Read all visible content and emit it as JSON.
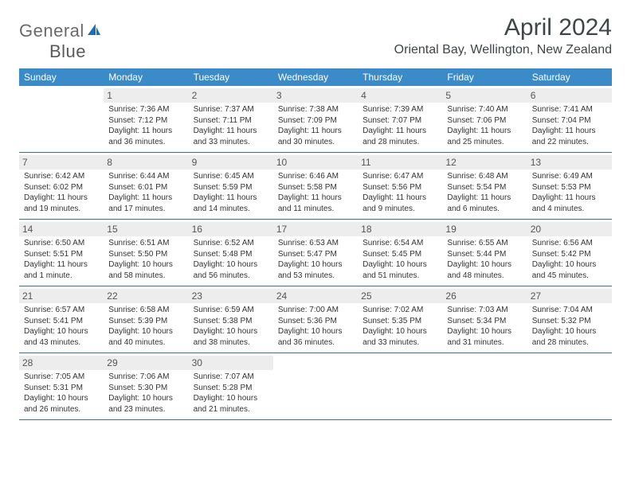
{
  "brand": {
    "name_part1": "General",
    "name_part2": "Blue"
  },
  "title": "April 2024",
  "location": "Oriental Bay, Wellington, New Zealand",
  "colors": {
    "header_bg": "#3b8bc9",
    "rule": "#3b6f97",
    "daynum_bg": "#ededed",
    "text": "#333333",
    "title_text": "#404548"
  },
  "dow": [
    "Sunday",
    "Monday",
    "Tuesday",
    "Wednesday",
    "Thursday",
    "Friday",
    "Saturday"
  ],
  "weeks": [
    [
      {
        "n": "",
        "sunrise": "",
        "sunset": "",
        "daylight": ""
      },
      {
        "n": "1",
        "sunrise": "Sunrise: 7:36 AM",
        "sunset": "Sunset: 7:12 PM",
        "daylight": "Daylight: 11 hours and 36 minutes."
      },
      {
        "n": "2",
        "sunrise": "Sunrise: 7:37 AM",
        "sunset": "Sunset: 7:11 PM",
        "daylight": "Daylight: 11 hours and 33 minutes."
      },
      {
        "n": "3",
        "sunrise": "Sunrise: 7:38 AM",
        "sunset": "Sunset: 7:09 PM",
        "daylight": "Daylight: 11 hours and 30 minutes."
      },
      {
        "n": "4",
        "sunrise": "Sunrise: 7:39 AM",
        "sunset": "Sunset: 7:07 PM",
        "daylight": "Daylight: 11 hours and 28 minutes."
      },
      {
        "n": "5",
        "sunrise": "Sunrise: 7:40 AM",
        "sunset": "Sunset: 7:06 PM",
        "daylight": "Daylight: 11 hours and 25 minutes."
      },
      {
        "n": "6",
        "sunrise": "Sunrise: 7:41 AM",
        "sunset": "Sunset: 7:04 PM",
        "daylight": "Daylight: 11 hours and 22 minutes."
      }
    ],
    [
      {
        "n": "7",
        "sunrise": "Sunrise: 6:42 AM",
        "sunset": "Sunset: 6:02 PM",
        "daylight": "Daylight: 11 hours and 19 minutes."
      },
      {
        "n": "8",
        "sunrise": "Sunrise: 6:44 AM",
        "sunset": "Sunset: 6:01 PM",
        "daylight": "Daylight: 11 hours and 17 minutes."
      },
      {
        "n": "9",
        "sunrise": "Sunrise: 6:45 AM",
        "sunset": "Sunset: 5:59 PM",
        "daylight": "Daylight: 11 hours and 14 minutes."
      },
      {
        "n": "10",
        "sunrise": "Sunrise: 6:46 AM",
        "sunset": "Sunset: 5:58 PM",
        "daylight": "Daylight: 11 hours and 11 minutes."
      },
      {
        "n": "11",
        "sunrise": "Sunrise: 6:47 AM",
        "sunset": "Sunset: 5:56 PM",
        "daylight": "Daylight: 11 hours and 9 minutes."
      },
      {
        "n": "12",
        "sunrise": "Sunrise: 6:48 AM",
        "sunset": "Sunset: 5:54 PM",
        "daylight": "Daylight: 11 hours and 6 minutes."
      },
      {
        "n": "13",
        "sunrise": "Sunrise: 6:49 AM",
        "sunset": "Sunset: 5:53 PM",
        "daylight": "Daylight: 11 hours and 4 minutes."
      }
    ],
    [
      {
        "n": "14",
        "sunrise": "Sunrise: 6:50 AM",
        "sunset": "Sunset: 5:51 PM",
        "daylight": "Daylight: 11 hours and 1 minute."
      },
      {
        "n": "15",
        "sunrise": "Sunrise: 6:51 AM",
        "sunset": "Sunset: 5:50 PM",
        "daylight": "Daylight: 10 hours and 58 minutes."
      },
      {
        "n": "16",
        "sunrise": "Sunrise: 6:52 AM",
        "sunset": "Sunset: 5:48 PM",
        "daylight": "Daylight: 10 hours and 56 minutes."
      },
      {
        "n": "17",
        "sunrise": "Sunrise: 6:53 AM",
        "sunset": "Sunset: 5:47 PM",
        "daylight": "Daylight: 10 hours and 53 minutes."
      },
      {
        "n": "18",
        "sunrise": "Sunrise: 6:54 AM",
        "sunset": "Sunset: 5:45 PM",
        "daylight": "Daylight: 10 hours and 51 minutes."
      },
      {
        "n": "19",
        "sunrise": "Sunrise: 6:55 AM",
        "sunset": "Sunset: 5:44 PM",
        "daylight": "Daylight: 10 hours and 48 minutes."
      },
      {
        "n": "20",
        "sunrise": "Sunrise: 6:56 AM",
        "sunset": "Sunset: 5:42 PM",
        "daylight": "Daylight: 10 hours and 45 minutes."
      }
    ],
    [
      {
        "n": "21",
        "sunrise": "Sunrise: 6:57 AM",
        "sunset": "Sunset: 5:41 PM",
        "daylight": "Daylight: 10 hours and 43 minutes."
      },
      {
        "n": "22",
        "sunrise": "Sunrise: 6:58 AM",
        "sunset": "Sunset: 5:39 PM",
        "daylight": "Daylight: 10 hours and 40 minutes."
      },
      {
        "n": "23",
        "sunrise": "Sunrise: 6:59 AM",
        "sunset": "Sunset: 5:38 PM",
        "daylight": "Daylight: 10 hours and 38 minutes."
      },
      {
        "n": "24",
        "sunrise": "Sunrise: 7:00 AM",
        "sunset": "Sunset: 5:36 PM",
        "daylight": "Daylight: 10 hours and 36 minutes."
      },
      {
        "n": "25",
        "sunrise": "Sunrise: 7:02 AM",
        "sunset": "Sunset: 5:35 PM",
        "daylight": "Daylight: 10 hours and 33 minutes."
      },
      {
        "n": "26",
        "sunrise": "Sunrise: 7:03 AM",
        "sunset": "Sunset: 5:34 PM",
        "daylight": "Daylight: 10 hours and 31 minutes."
      },
      {
        "n": "27",
        "sunrise": "Sunrise: 7:04 AM",
        "sunset": "Sunset: 5:32 PM",
        "daylight": "Daylight: 10 hours and 28 minutes."
      }
    ],
    [
      {
        "n": "28",
        "sunrise": "Sunrise: 7:05 AM",
        "sunset": "Sunset: 5:31 PM",
        "daylight": "Daylight: 10 hours and 26 minutes."
      },
      {
        "n": "29",
        "sunrise": "Sunrise: 7:06 AM",
        "sunset": "Sunset: 5:30 PM",
        "daylight": "Daylight: 10 hours and 23 minutes."
      },
      {
        "n": "30",
        "sunrise": "Sunrise: 7:07 AM",
        "sunset": "Sunset: 5:28 PM",
        "daylight": "Daylight: 10 hours and 21 minutes."
      },
      {
        "n": "",
        "sunrise": "",
        "sunset": "",
        "daylight": ""
      },
      {
        "n": "",
        "sunrise": "",
        "sunset": "",
        "daylight": ""
      },
      {
        "n": "",
        "sunrise": "",
        "sunset": "",
        "daylight": ""
      },
      {
        "n": "",
        "sunrise": "",
        "sunset": "",
        "daylight": ""
      }
    ]
  ]
}
